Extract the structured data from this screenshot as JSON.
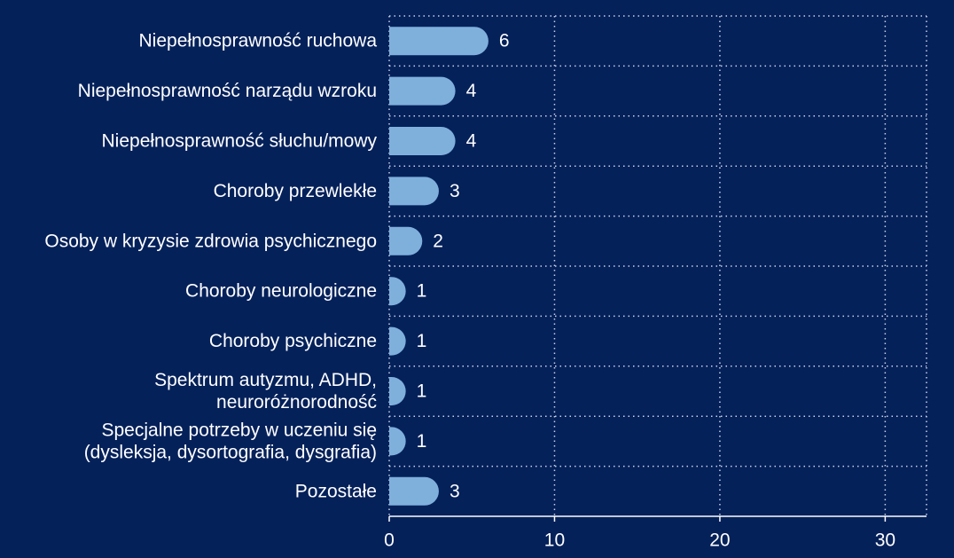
{
  "colors": {
    "background": "#05215a",
    "bar": "#7fb0dc",
    "grid": "#c8d2e6",
    "text": "#ffffff",
    "axis": "#ffffff"
  },
  "chart_data": {
    "type": "bar",
    "orientation": "horizontal",
    "categories": [
      [
        "Niepełnosprawność ruchowa"
      ],
      [
        "Niepełnosprawność narządu wzroku"
      ],
      [
        "Niepełnosprawność słuchu/mowy"
      ],
      [
        "Choroby przewlekłe"
      ],
      [
        "Osoby w kryzysie zdrowia psychicznego"
      ],
      [
        "Choroby neurologiczne"
      ],
      [
        "Choroby psychiczne"
      ],
      [
        "Spektrum autyzmu, ADHD,",
        "neuroróżnorodność"
      ],
      [
        "Specjalne potrzeby w uczeniu się",
        "(dysleksja, dysortografia, dysgrafia)"
      ],
      [
        "Pozostałe"
      ]
    ],
    "values": [
      6,
      4,
      4,
      3,
      2,
      1,
      1,
      1,
      1,
      3
    ],
    "data_labels": [
      "6",
      "4",
      "4",
      "3",
      "2",
      "1",
      "1",
      "1",
      "1",
      "3"
    ],
    "xlim": [
      0,
      32.5
    ],
    "xticks": [
      0,
      10,
      20,
      30
    ],
    "xtick_labels": [
      "0",
      "10",
      "20",
      "30"
    ],
    "grid": "vertical dotted",
    "legend": "none",
    "title": "",
    "xlabel": "",
    "ylabel": ""
  }
}
